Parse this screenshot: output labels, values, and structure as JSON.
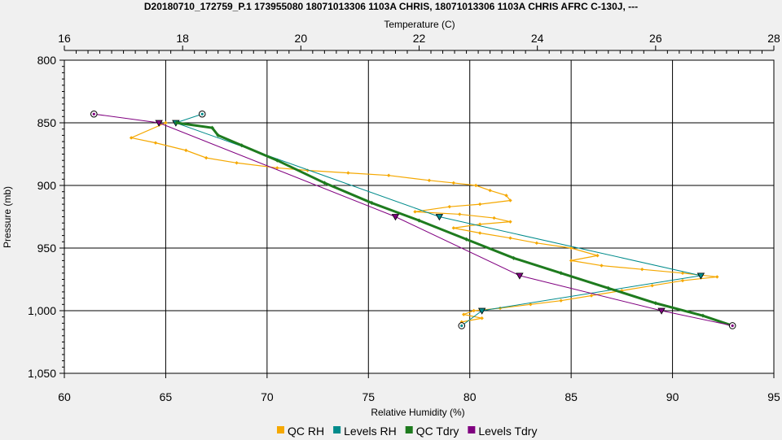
{
  "chart_data": {
    "type": "line",
    "title": "D20180710_172759_P.1 173955080 18071013306 1103A CHRIS, 18071013306 1103A CHRIS AFRC C-130J, ---",
    "xlabel": "Relative Humidity (%)",
    "x2label": "Temperature (C)",
    "ylabel": "Pressure (mb)",
    "xlim": [
      60,
      95
    ],
    "x2lim": [
      16,
      28
    ],
    "ylim": [
      800,
      1050
    ],
    "y_inverted": true,
    "grid": true,
    "legend_position": "bottom",
    "xticks": [
      "60",
      "65",
      "70",
      "75",
      "80",
      "85",
      "90",
      "95"
    ],
    "x2ticks": [
      "16",
      "18",
      "20",
      "22",
      "24",
      "26",
      "28"
    ],
    "yticks": [
      "800",
      "850",
      "900",
      "950",
      "1,000",
      "1,050"
    ],
    "series": [
      {
        "name": "QC RH",
        "color": "#f5a800",
        "axis": "rh",
        "marker": "diamond",
        "points": [
          [
            65.0,
            850
          ],
          [
            63.3,
            862
          ],
          [
            64.5,
            866
          ],
          [
            66.0,
            872
          ],
          [
            67.0,
            878
          ],
          [
            68.5,
            882
          ],
          [
            70.5,
            886
          ],
          [
            72.0,
            888
          ],
          [
            74.0,
            890
          ],
          [
            76.0,
            892
          ],
          [
            78.0,
            896
          ],
          [
            79.2,
            898
          ],
          [
            80.3,
            900
          ],
          [
            81.0,
            904
          ],
          [
            81.8,
            908
          ],
          [
            82.0,
            912
          ],
          [
            80.5,
            915
          ],
          [
            79.0,
            917
          ],
          [
            77.3,
            921
          ],
          [
            79.5,
            923
          ],
          [
            81.2,
            926
          ],
          [
            82.0,
            929
          ],
          [
            80.5,
            931
          ],
          [
            79.2,
            934
          ],
          [
            80.5,
            938
          ],
          [
            82.0,
            942
          ],
          [
            83.3,
            946
          ],
          [
            85.0,
            950
          ],
          [
            86.3,
            956
          ],
          [
            85.0,
            960
          ],
          [
            86.5,
            964
          ],
          [
            88.5,
            967
          ],
          [
            90.5,
            970
          ],
          [
            92.2,
            973
          ],
          [
            90.5,
            976
          ],
          [
            89.0,
            980
          ],
          [
            87.5,
            984
          ],
          [
            86.0,
            988
          ],
          [
            84.5,
            992
          ],
          [
            83.0,
            995
          ],
          [
            81.5,
            998
          ],
          [
            80.2,
            1000
          ],
          [
            79.7,
            1003
          ],
          [
            80.6,
            1006
          ],
          [
            79.6,
            1009
          ]
        ]
      },
      {
        "name": "Levels RH",
        "color": "#008b8b",
        "axis": "rh",
        "marker": "triangle",
        "points": [
          [
            66.8,
            843
          ],
          [
            65.5,
            850
          ],
          [
            78.5,
            925
          ],
          [
            91.4,
            972
          ],
          [
            80.6,
            1000
          ],
          [
            79.6,
            1012
          ]
        ]
      },
      {
        "name": "QC Tdry",
        "color": "#1e7b1e",
        "axis": "temp",
        "marker": "diamond",
        "points": [
          [
            17.9,
            850
          ],
          [
            18.5,
            854
          ],
          [
            18.6,
            860
          ],
          [
            19.0,
            868
          ],
          [
            19.6,
            880
          ],
          [
            20.4,
            898
          ],
          [
            21.2,
            914
          ],
          [
            22.0,
            928
          ],
          [
            22.8,
            943
          ],
          [
            23.6,
            958
          ],
          [
            24.4,
            970
          ],
          [
            25.2,
            982
          ],
          [
            26.0,
            994
          ],
          [
            26.8,
            1004
          ],
          [
            27.3,
            1012
          ]
        ]
      },
      {
        "name": "Levels Tdry",
        "color": "#800080",
        "axis": "temp",
        "marker": "triangle",
        "points": [
          [
            16.5,
            843
          ],
          [
            17.6,
            850
          ],
          [
            21.6,
            925
          ],
          [
            23.7,
            972
          ],
          [
            26.1,
            1000
          ],
          [
            27.3,
            1012
          ]
        ]
      }
    ]
  }
}
